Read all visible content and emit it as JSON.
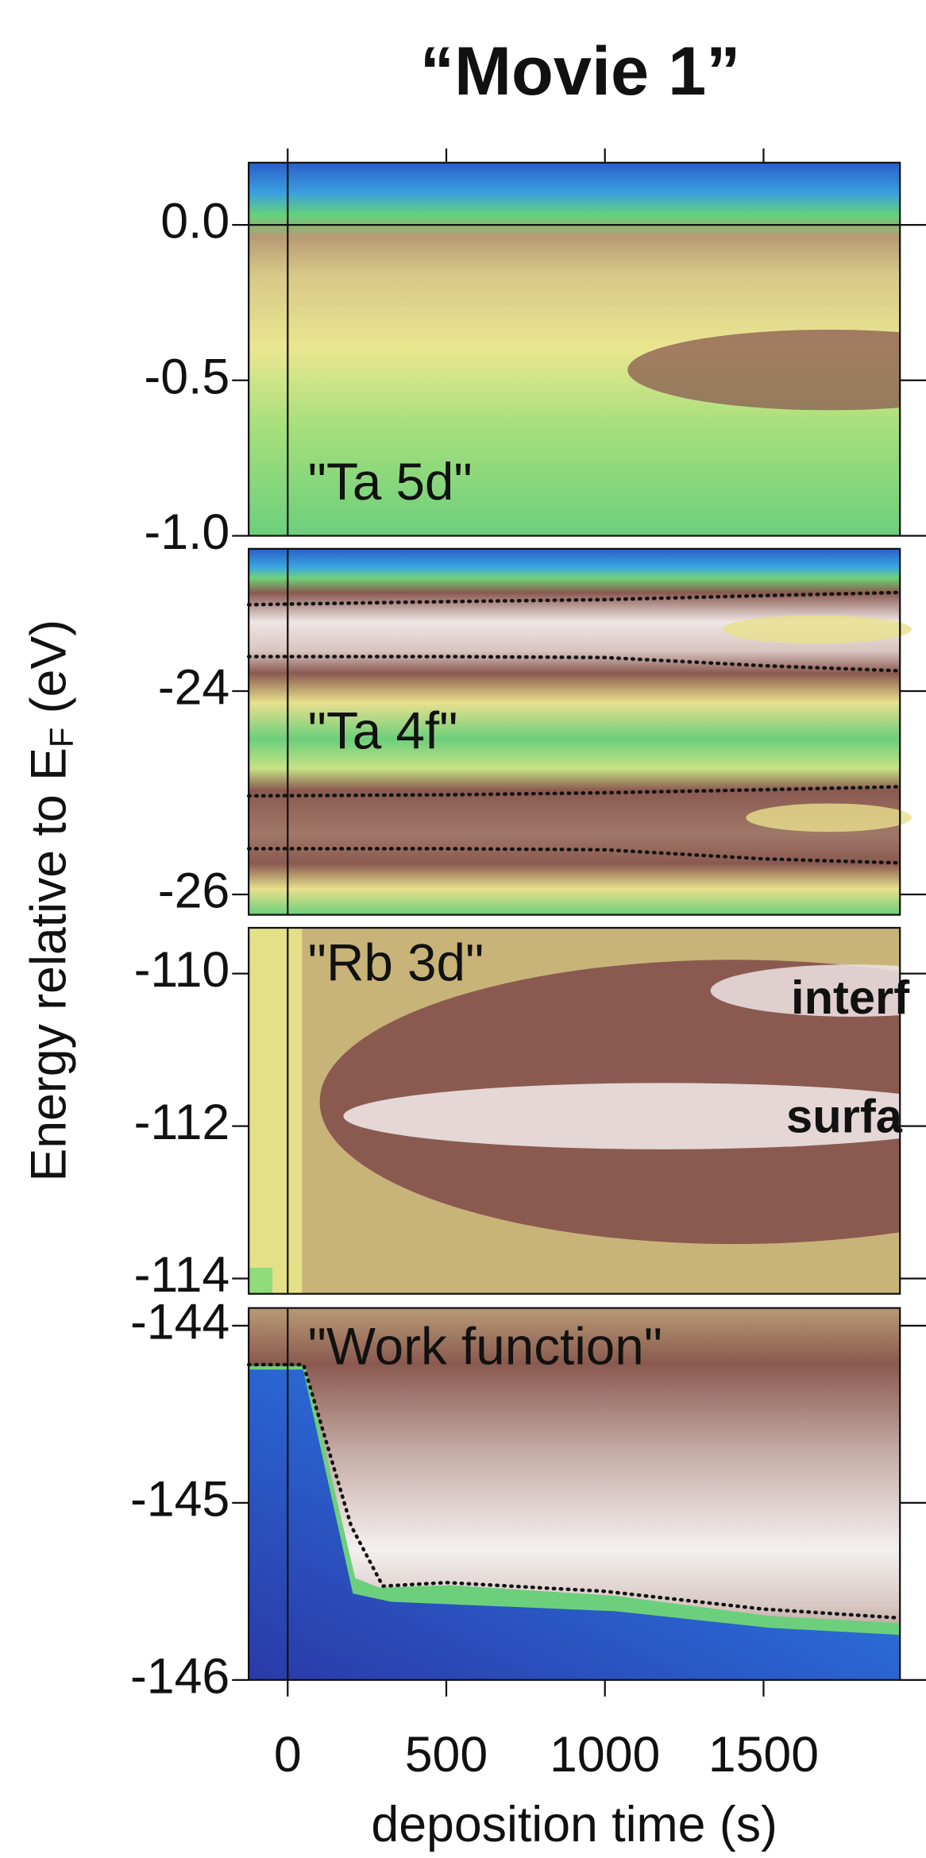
{
  "chart_data": [
    {
      "type": "heatmap",
      "title": "“Movie 1”",
      "ylabel": "Energy relative to E",
      "ylabel_sub": "F",
      "ylabel_unit": " (eV)",
      "label": "\"Ta 5d\"",
      "xlim": [
        -123,
        1930
      ],
      "ylim": [
        -1.0,
        0.2
      ],
      "yticks": [
        {
          "value": 0,
          "label": "0.0"
        },
        -0.5,
        {
          "value": -1,
          "label": "-1.0"
        }
      ]
    },
    {
      "type": "heatmap",
      "label": "\"Ta 4f\"",
      "xlim": [
        -123,
        1930
      ],
      "ylim": [
        -26.2,
        -22.6
      ],
      "yticks": [
        -24,
        -26
      ],
      "x": [
        -123,
        500,
        1000,
        1500,
        1930
      ],
      "series": [
        {
          "values": [
            -23.15,
            -23.12,
            -23.1,
            -23.06,
            -23.03
          ],
          "color": "#111111"
        },
        {
          "values": [
            -23.66,
            -23.66,
            -23.67,
            -23.75,
            -23.8
          ],
          "color": "#111111"
        },
        {
          "values": [
            -25.03,
            -25.02,
            -25.0,
            -24.97,
            -24.94
          ],
          "color": "#111111"
        },
        {
          "values": [
            -25.55,
            -25.55,
            -25.56,
            -25.65,
            -25.69
          ],
          "color": "#111111"
        }
      ]
    },
    {
      "type": "heatmap",
      "label": "\"Rb 3d\"",
      "annotations": [
        "interf",
        "surfa"
      ],
      "xlim": [
        -123,
        1930
      ],
      "ylim": [
        -114.2,
        -109.4
      ],
      "yticks": [
        -110,
        -112,
        -114
      ]
    },
    {
      "type": "heatmap",
      "label": "\"Work function\"",
      "xlabel": "deposition time (s)",
      "xlim": [
        -123,
        1930
      ],
      "ylim": [
        -146,
        -143.9
      ],
      "yticks": [
        -144,
        -145,
        -146
      ],
      "xticks": [
        0,
        500,
        1000,
        1500
      ],
      "x": [
        -123,
        50,
        200,
        300,
        500,
        1000,
        1500,
        1930
      ],
      "series": [
        {
          "values": [
            -144.22,
            -144.22,
            -145.13,
            -145.47,
            -145.45,
            -145.5,
            -145.6,
            -145.65
          ],
          "color": "#111111"
        }
      ]
    }
  ]
}
